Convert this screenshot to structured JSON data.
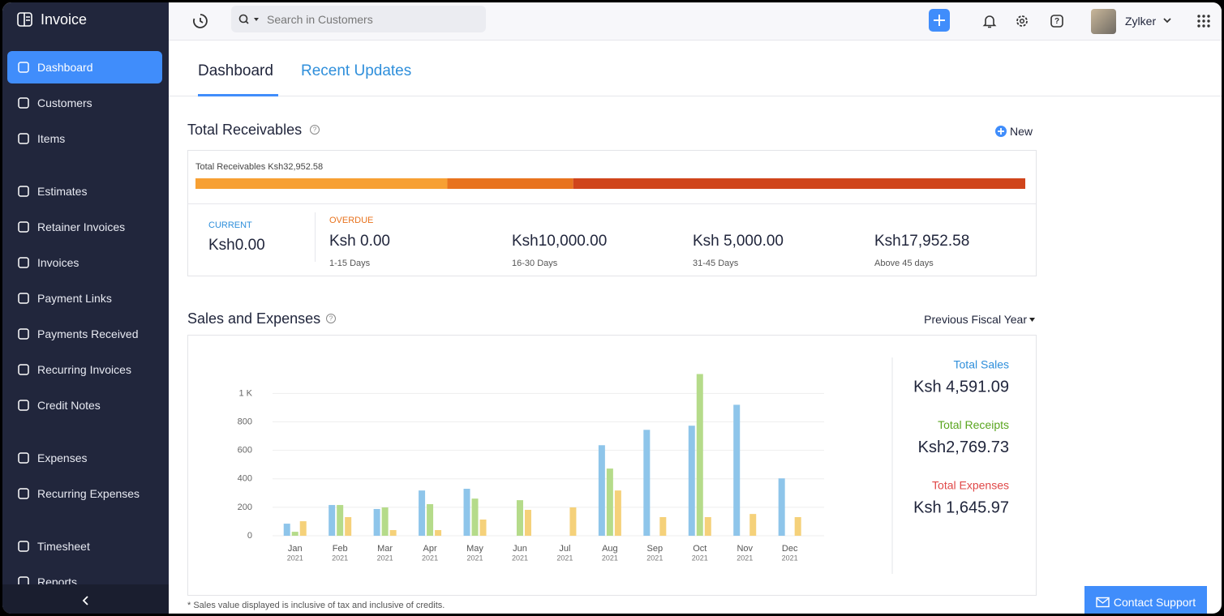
{
  "sidebar": {
    "brand": "Invoice",
    "active": 0,
    "groups": [
      [
        "Dashboard",
        "Customers",
        "Items"
      ],
      [
        "Estimates",
        "Retainer Invoices",
        "Invoices",
        "Payment Links",
        "Payments Received",
        "Recurring Invoices",
        "Credit Notes"
      ],
      [
        "Expenses",
        "Recurring Expenses"
      ],
      [
        "Timesheet",
        "Reports"
      ]
    ]
  },
  "topbar": {
    "search_placeholder": "Search in Customers",
    "user": "Zylker"
  },
  "tabs": [
    "Dashboard",
    "Recent Updates"
  ],
  "receivables": {
    "title": "Total Receivables",
    "new_button": "New",
    "bar_label": "Total Receivables",
    "total_text": "Ksh32,952.58",
    "total": 32952.58,
    "current_label": "CURRENT",
    "current_amount": "Ksh0.00",
    "overdue_label": "OVERDUE",
    "buckets": [
      {
        "amount": "Ksh 0.00",
        "value": 0,
        "range": "1-15 Days",
        "color": "#fbb954"
      },
      {
        "amount": "Ksh10,000.00",
        "value": 10000,
        "range": "16-30 Days",
        "color": "#f7a033"
      },
      {
        "amount": "Ksh 5,000.00",
        "value": 5000,
        "range": "31-45 Days",
        "color": "#e8731e"
      },
      {
        "amount": "Ksh17,952.58",
        "value": 17952.58,
        "range": "Above 45 days",
        "color": "#d0451b"
      }
    ]
  },
  "chart_data": {
    "type": "bar",
    "title": "Sales and Expenses",
    "period": "Previous Fiscal Year",
    "categories": [
      "Jan",
      "Feb",
      "Mar",
      "Apr",
      "May",
      "Jun",
      "Jul",
      "Aug",
      "Sep",
      "Oct",
      "Nov",
      "Dec"
    ],
    "category_sublabels": [
      "2021",
      "2021",
      "2021",
      "2021",
      "2021",
      "2021",
      "2021",
      "2021",
      "2021",
      "2021",
      "2021",
      "2021"
    ],
    "series": [
      {
        "name": "Total Sales",
        "color": "#8ec5ea",
        "total": "Ksh 4,591.09",
        "label_color": "#2f8fdb",
        "values": [
          85,
          216,
          188,
          318,
          330,
          0,
          0,
          636,
          744,
          773,
          920,
          403
        ]
      },
      {
        "name": "Total Receipts",
        "color": "#b5db8a",
        "total": "Ksh2,769.73",
        "label_color": "#5aa51f",
        "values": [
          28,
          216,
          199,
          222,
          261,
          250,
          0,
          472,
          0,
          1136,
          0,
          0
        ]
      },
      {
        "name": "Total Expenses",
        "color": "#f5d17a",
        "total": "Ksh 1,645.97",
        "label_color": "#e04848",
        "values": [
          102,
          131,
          40,
          40,
          114,
          182,
          199,
          318,
          131,
          131,
          153,
          131
        ]
      }
    ],
    "ylim": [
      0,
      1150
    ],
    "yticks": [
      0,
      200,
      400,
      600,
      800,
      {
        "value": 1000,
        "label": "1 K"
      }
    ],
    "grid": true
  },
  "footnote": "* Sales value displayed is inclusive of tax and inclusive of credits.",
  "support_button": "Contact Support"
}
